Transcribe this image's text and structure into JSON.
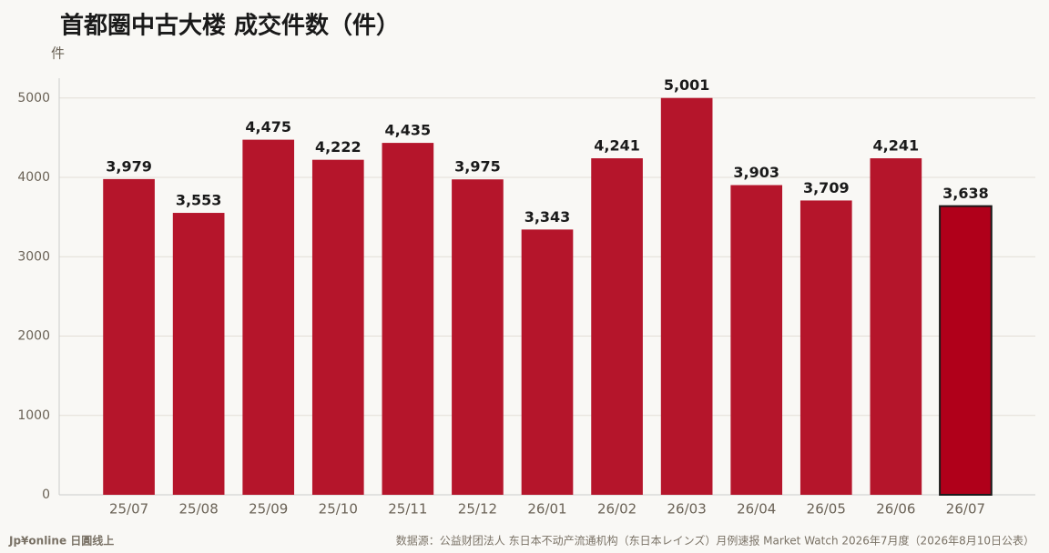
{
  "chart_data": {
    "type": "bar",
    "title": "首都圈中古大楼 成交件数（件）",
    "y_label": "件",
    "categories": [
      "25/07",
      "25/08",
      "25/09",
      "25/10",
      "25/11",
      "25/12",
      "26/01",
      "26/02",
      "26/03",
      "26/04",
      "26/05",
      "26/06",
      "26/07"
    ],
    "values": [
      3979,
      3553,
      4475,
      4222,
      4435,
      3975,
      3343,
      4241,
      5001,
      3903,
      3709,
      4241,
      3638
    ],
    "value_labels": [
      "3,979",
      "3,553",
      "4,475",
      "4,222",
      "4,435",
      "3,975",
      "3,343",
      "4,241",
      "5,001",
      "3,903",
      "3,709",
      "4,241",
      "3,638"
    ],
    "colors": [
      "#b5152b",
      "#b5152b",
      "#b5152b",
      "#b5152b",
      "#b5152b",
      "#b5152b",
      "#b5152b",
      "#b5152b",
      "#b5152b",
      "#b5152b",
      "#b5152b",
      "#b5152b",
      "#b0001a"
    ],
    "ylim": [
      0,
      5250
    ],
    "yticks": [
      0,
      1000,
      2000,
      3000,
      4000,
      5000
    ],
    "grid": true,
    "brand": "Jp¥online 日圓线上",
    "source": "数据源：公益财团法人 东日本不动产流通机构（东日本レインズ）月例速报 Market Watch 2026年7月度（2026年8月10日公表）"
  }
}
